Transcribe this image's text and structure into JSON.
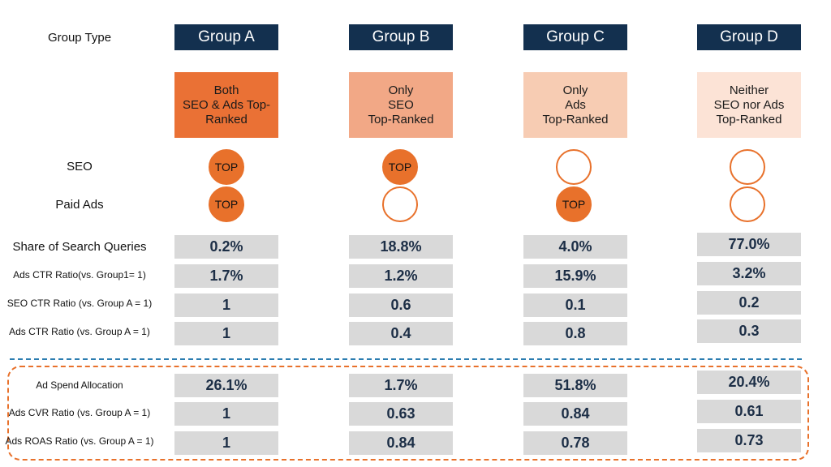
{
  "labels": {
    "group_type": "Group Type",
    "seo": "SEO",
    "paid_ads": "Paid Ads",
    "share": "Share of Search Queries",
    "ads_ctr_g1": "Ads CTR Ratio(vs. Group1= 1)",
    "seo_ctr": "SEO CTR Ratio (vs. Group A = 1)",
    "ads_ctr": "Ads CTR Ratio (vs. Group A = 1)",
    "ad_spend": "Ad Spend Allocation",
    "ads_cvr": "Ads CVR Ratio (vs. Group A = 1)",
    "ads_roas": "Ads ROAS Ratio (vs. Group A = 1)"
  },
  "circle_text": "TOP",
  "colors": {
    "header_navy": "#13304f",
    "accent_orange": "#e8712b",
    "desc_a": "#ea7135",
    "desc_b": "#f2a886",
    "desc_c": "#f7ccb3",
    "desc_d": "#fce3d6",
    "cell_gray": "#d9d9d9",
    "value_text": "#1c2e46",
    "divider_blue": "#2c7db0"
  },
  "groups": [
    {
      "name": "Group A",
      "desc": [
        "Both",
        "SEO & Ads Top-",
        "Ranked"
      ],
      "seo_top": true,
      "ads_top": true,
      "share": "0.2%",
      "ads_ctr_g1": "1.7%",
      "seo_ctr": "1",
      "ads_ctr": "1",
      "ad_spend": "26.1%",
      "ads_cvr": "1",
      "ads_roas": "1"
    },
    {
      "name": "Group B",
      "desc": [
        "Only",
        "SEO",
        "Top-Ranked"
      ],
      "seo_top": true,
      "ads_top": false,
      "share": "18.8%",
      "ads_ctr_g1": "1.2%",
      "seo_ctr": "0.6",
      "ads_ctr": "0.4",
      "ad_spend": "1.7%",
      "ads_cvr": "0.63",
      "ads_roas": "0.84"
    },
    {
      "name": "Group C",
      "desc": [
        "Only",
        "Ads",
        "Top-Ranked"
      ],
      "seo_top": false,
      "ads_top": true,
      "share": "4.0%",
      "ads_ctr_g1": "15.9%",
      "seo_ctr": "0.1",
      "ads_ctr": "0.8",
      "ad_spend": "51.8%",
      "ads_cvr": "0.84",
      "ads_roas": "0.78"
    },
    {
      "name": "Group D",
      "desc": [
        "Neither",
        "SEO nor Ads",
        "Top-Ranked"
      ],
      "seo_top": false,
      "ads_top": false,
      "share": "77.0%",
      "ads_ctr_g1": "3.2%",
      "seo_ctr": "0.2",
      "ads_ctr": "0.3",
      "ad_spend": "20.4%",
      "ads_cvr": "0.61",
      "ads_roas": "0.73"
    }
  ]
}
